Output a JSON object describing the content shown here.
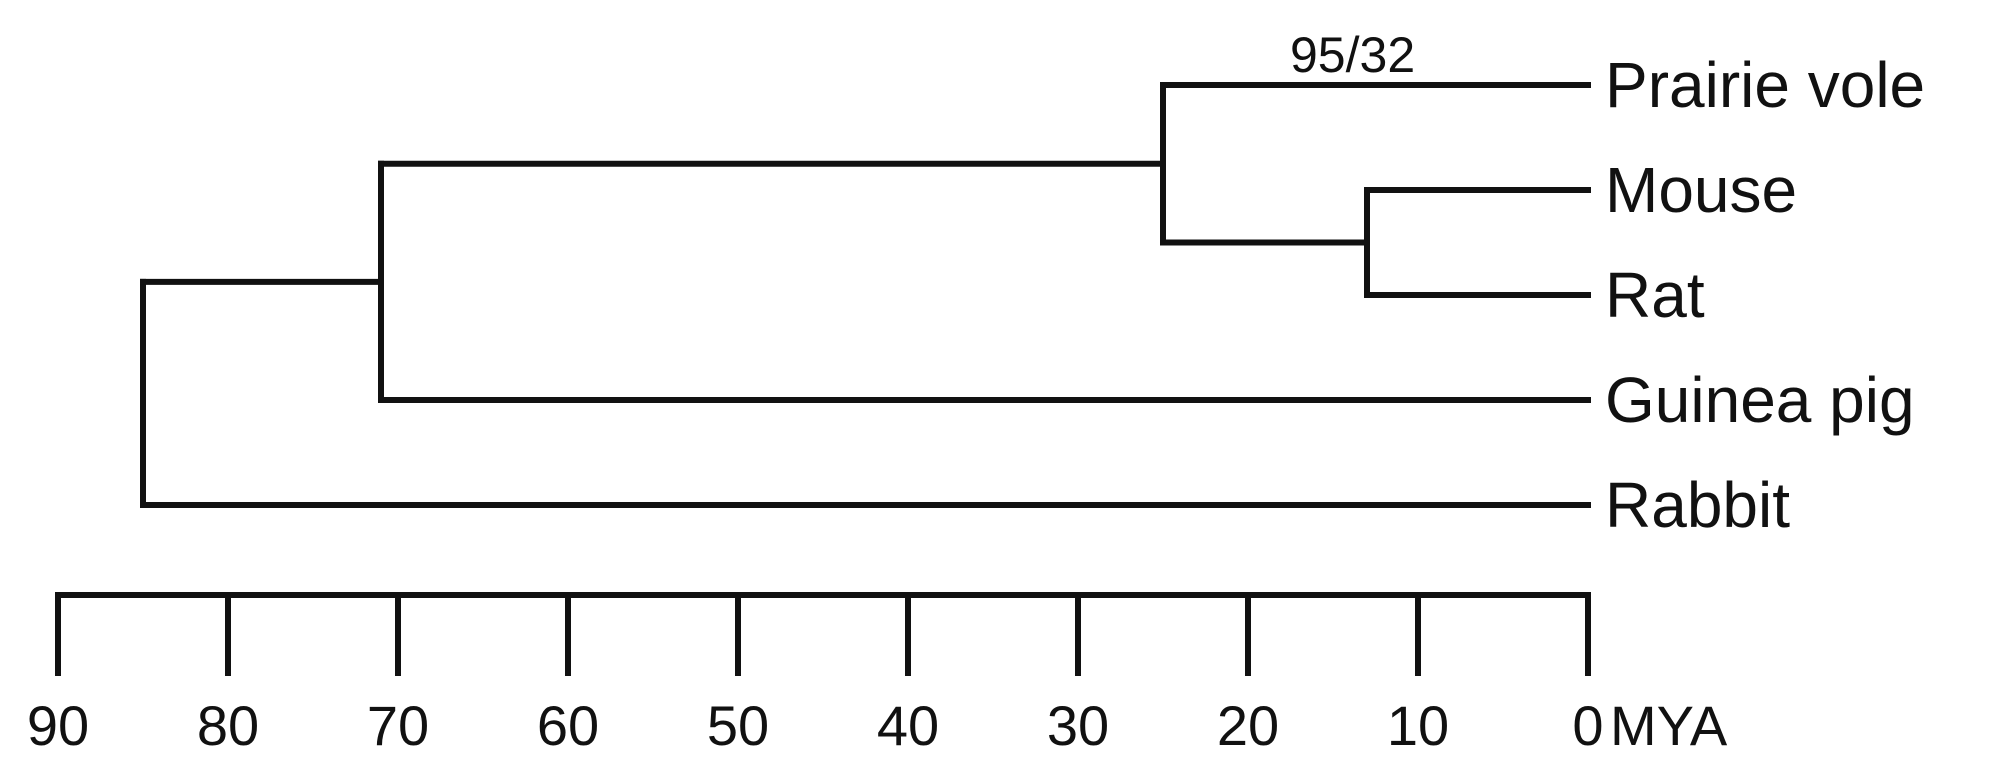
{
  "tree": {
    "taxa": [
      {
        "id": "prairie-vole",
        "label": "Prairie vole"
      },
      {
        "id": "mouse",
        "label": "Mouse"
      },
      {
        "id": "rat",
        "label": "Rat"
      },
      {
        "id": "guinea-pig",
        "label": "Guinea pig"
      },
      {
        "id": "rabbit",
        "label": "Rabbit"
      }
    ],
    "nodes": [
      {
        "id": "root",
        "age": 85,
        "children": [
          "rodentia",
          "rabbit"
        ]
      },
      {
        "id": "rodentia",
        "age": 71,
        "children": [
          "muroidea",
          "guinea-pig"
        ]
      },
      {
        "id": "muroidea",
        "age": 25,
        "children": [
          "prairie-vole",
          "murinae"
        ]
      },
      {
        "id": "murinae",
        "age": 13,
        "children": [
          "mouse",
          "rat"
        ]
      }
    ],
    "support_label": "95/32"
  },
  "axis": {
    "ticks": [
      "90",
      "80",
      "70",
      "60",
      "50",
      "40",
      "30",
      "20",
      "10",
      "0"
    ],
    "unit": "MYA"
  }
}
